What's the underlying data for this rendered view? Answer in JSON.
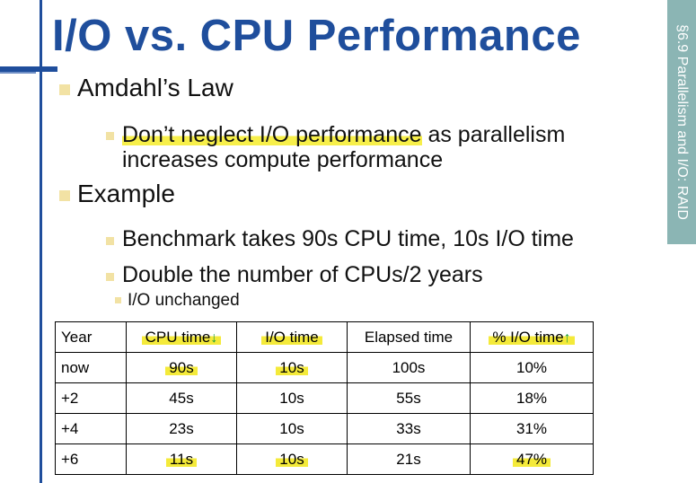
{
  "title": "I/O vs. CPU Performance",
  "sidebar": "§6.9 Parallelism and I/O: RAID",
  "bullets": {
    "b1": "Amdahl’s Law",
    "b1_sub_highlight": "Don’t neglect I/O performance",
    "b1_sub_rest_line1": " as parallelism",
    "b1_sub_line2": "increases compute performance",
    "b2": "Example",
    "b2_sub1": "Benchmark takes 90s CPU time, 10s I/O time",
    "b2_sub2": "Double the number of CPUs/2 years",
    "b2_sub2_sub": "I/O unchanged"
  },
  "table": {
    "headers": [
      "Year",
      "CPU time",
      "I/O time",
      "Elapsed time",
      "% I/O time"
    ],
    "rows": [
      [
        "now",
        "90s",
        "10s",
        "100s",
        "10%"
      ],
      [
        "+2",
        "45s",
        "10s",
        "55s",
        "18%"
      ],
      [
        "+4",
        "23s",
        "10s",
        "33s",
        "31%"
      ],
      [
        "+6",
        "11s",
        "10s",
        "21s",
        "47%"
      ]
    ]
  },
  "annotations": {
    "cpu_arrow": "↓",
    "pct_arrow": "↑"
  },
  "colors": {
    "title_blue": "#1f4e9c",
    "sidebar_teal": "#8bb5b4",
    "bullet_tan": "#f2e2a4",
    "highlighter_yellow": "#f4ea3a",
    "ink_green": "#1a9c3c"
  }
}
